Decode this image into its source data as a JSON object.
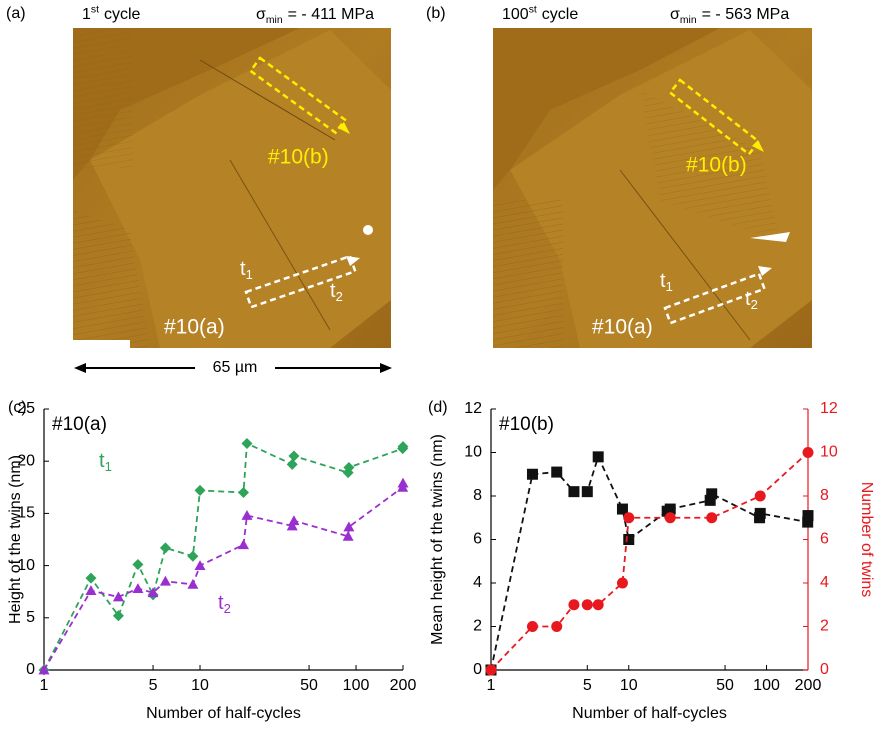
{
  "figure": {
    "images": [
      {
        "panel": "(a)",
        "cycle": {
          "n": "1",
          "sup": "st",
          "rest": "cycle"
        },
        "stress": {
          "symbol": "σ",
          "sub": "min",
          "rest": "= - 411 MPa"
        },
        "region_b": "#10(b)",
        "region_a": "#10(a)",
        "t1": {
          "base": "t",
          "sub": "1"
        },
        "t2": {
          "base": "t",
          "sub": "2"
        }
      },
      {
        "panel": "(b)",
        "cycle": {
          "n": "100",
          "sup": "st",
          "rest": "cycle"
        },
        "stress": {
          "symbol": "σ",
          "sub": "min",
          "rest": "= - 563 MPa"
        },
        "region_b": "#10(b)",
        "region_a": "#10(a)",
        "t1": {
          "base": "t",
          "sub": "1"
        },
        "t2": {
          "base": "t",
          "sub": "2"
        }
      }
    ],
    "scale_bar": "65 µm"
  },
  "chart_data": [
    {
      "type": "line",
      "panel": "(c)",
      "title": "#10(a)",
      "xlabel": "Number of half-cycles",
      "ylabel": "Height of the twins (nm)",
      "xscale": "log",
      "xlim": [
        1,
        200
      ],
      "xticks": [
        1,
        5,
        10,
        50,
        100,
        200
      ],
      "ylim": [
        0,
        25
      ],
      "yticks": [
        0,
        5,
        10,
        15,
        20,
        25
      ],
      "series": [
        {
          "label": {
            "text": "t",
            "sub": "1"
          },
          "color": "#2ea35a",
          "marker": "diamond",
          "x": [
            1,
            2,
            3,
            4,
            5,
            6,
            9,
            10,
            19,
            20,
            39,
            40,
            89,
            90,
            199,
            200
          ],
          "values": [
            0,
            8.8,
            5.2,
            10.1,
            7.2,
            11.7,
            10.9,
            17.2,
            17.0,
            21.7,
            19.7,
            20.5,
            18.9,
            19.4,
            21.2,
            21.4
          ]
        },
        {
          "label": {
            "text": "t",
            "sub": "2"
          },
          "color": "#9a2fcf",
          "marker": "triangle",
          "x": [
            1,
            2,
            3,
            4,
            5,
            6,
            9,
            10,
            19,
            20,
            39,
            40,
            89,
            90,
            199,
            200
          ],
          "values": [
            0,
            7.6,
            7.0,
            7.8,
            7.4,
            8.5,
            8.2,
            10.0,
            12.0,
            14.8,
            13.8,
            14.3,
            12.8,
            13.7,
            17.5,
            17.9
          ]
        }
      ]
    },
    {
      "type": "line",
      "panel": "(d)",
      "title": "#10(b)",
      "xlabel": "Number of half-cycles",
      "ylabel": "Mean height of the twins (nm)",
      "y2label": "Number of twins",
      "y2color": "#e8191e",
      "xscale": "log",
      "xlim": [
        1,
        200
      ],
      "xticks": [
        1,
        5,
        10,
        50,
        100,
        200
      ],
      "ylim": [
        0,
        12
      ],
      "yticks": [
        0,
        2,
        4,
        6,
        8,
        10,
        12
      ],
      "y2lim": [
        0,
        12
      ],
      "y2ticks": [
        0,
        2,
        4,
        6,
        8,
        10,
        12
      ],
      "series": [
        {
          "color": "#111111",
          "marker": "square",
          "x": [
            1,
            2,
            3,
            4,
            5,
            6,
            9,
            10,
            19,
            20,
            39,
            40,
            89,
            90,
            199,
            200
          ],
          "values": [
            0,
            9.0,
            9.1,
            8.2,
            8.2,
            9.8,
            7.4,
            6.0,
            7.3,
            7.4,
            7.8,
            8.1,
            7.0,
            7.2,
            6.8,
            7.1
          ]
        },
        {
          "color": "#e8191e",
          "marker": "circle",
          "axis": "y2",
          "x": [
            1,
            2,
            3,
            4,
            5,
            6,
            9,
            10,
            20,
            40,
            90,
            200
          ],
          "values": [
            0,
            2,
            2,
            3,
            3,
            3,
            4,
            7,
            7,
            7,
            8,
            10
          ]
        }
      ]
    }
  ]
}
